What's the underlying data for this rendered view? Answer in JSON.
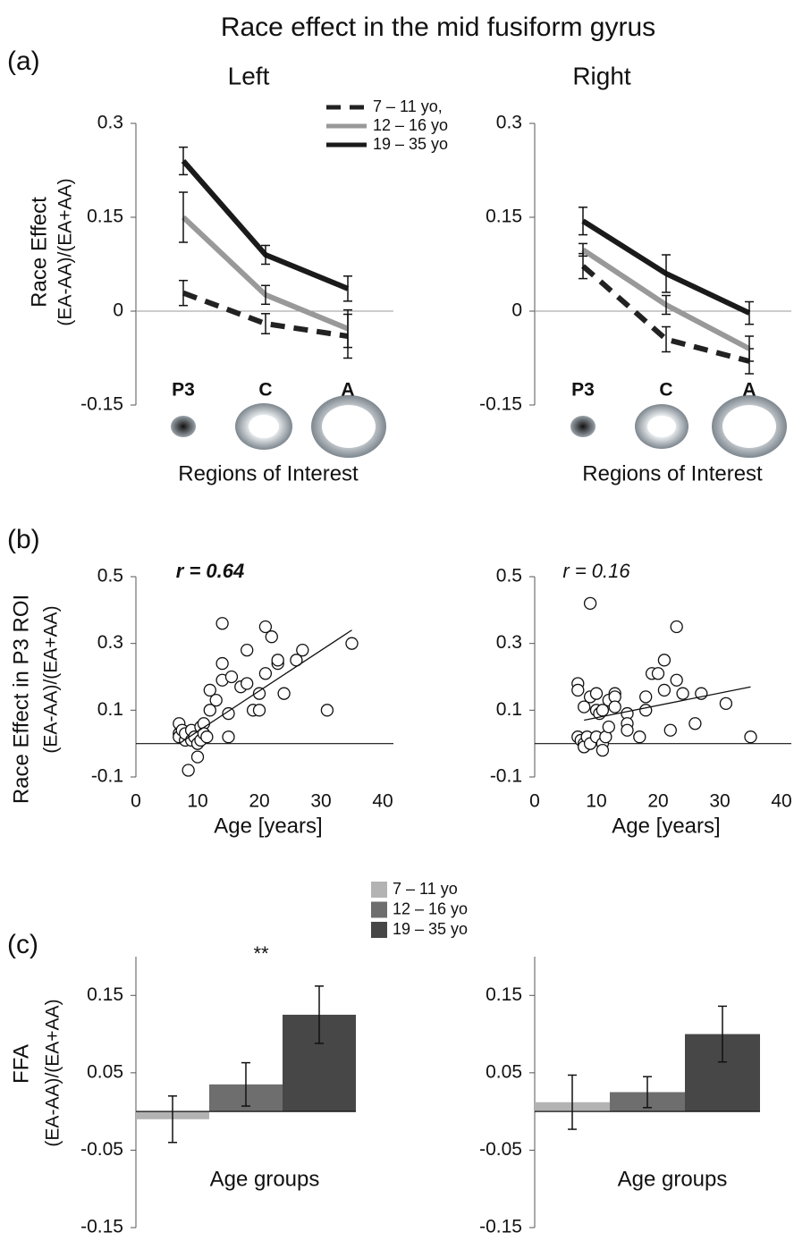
{
  "title": "Race effect in the mid fusiform gyrus",
  "panel_labels": [
    "(a)",
    "(b)",
    "(c)"
  ],
  "chart_data": [
    {
      "type": "line",
      "title": "Left",
      "ylabel": [
        "Race Effect",
        "(EA-AA)/(EA+AA)"
      ],
      "xlabel": "Regions of Interest",
      "categories": [
        "P3",
        "C",
        "A"
      ],
      "ylim": [
        -0.15,
        0.3
      ],
      "yticks": [
        -0.15,
        0,
        0.15,
        0.3
      ],
      "grid": false,
      "legend": true,
      "series": [
        {
          "name": "7 – 11 yo,",
          "color": "#222222",
          "linestyle": "dashed",
          "values": [
            0.029,
            -0.02,
            -0.04
          ],
          "errors": [
            0.02,
            0.016,
            0.035
          ]
        },
        {
          "name": "12 – 16 yo",
          "color": "#999999",
          "linestyle": "solid",
          "values": [
            0.15,
            0.026,
            -0.028
          ],
          "errors": [
            0.04,
            0.015,
            0.03
          ]
        },
        {
          "name": "19 – 35 yo",
          "color": "#1a1a1a",
          "linestyle": "solid",
          "values": [
            0.24,
            0.09,
            0.036
          ],
          "errors": [
            0.022,
            0.015,
            0.02
          ]
        }
      ]
    },
    {
      "type": "line",
      "title": "Right",
      "xlabel": "Regions of Interest",
      "categories": [
        "P3",
        "C",
        "A"
      ],
      "ylim": [
        -0.15,
        0.3
      ],
      "yticks": [
        -0.15,
        0,
        0.15,
        0.3
      ],
      "grid": false,
      "legend": false,
      "series": [
        {
          "color": "#222222",
          "linestyle": "dashed",
          "values": [
            0.072,
            -0.045,
            -0.08
          ],
          "errors": [
            0.02,
            0.02,
            0.02
          ]
        },
        {
          "color": "#999999",
          "linestyle": "solid",
          "values": [
            0.098,
            0.01,
            -0.06
          ],
          "errors": [
            0.01,
            0.015,
            0.02
          ]
        },
        {
          "color": "#1a1a1a",
          "linestyle": "solid",
          "values": [
            0.144,
            0.06,
            -0.003
          ],
          "errors": [
            0.022,
            0.03,
            0.018
          ]
        }
      ]
    },
    {
      "type": "scatter",
      "ylabel": [
        "Race Effect in P3 ROI",
        "(EA-AA)/(EA+AA)"
      ],
      "xlabel": "Age [years]",
      "annotation": "r = 0.64",
      "annotation_bold": true,
      "xlim": [
        0,
        40
      ],
      "xticks": [
        0,
        10,
        20,
        30,
        40
      ],
      "ylim": [
        -0.1,
        0.5
      ],
      "yticks": [
        -0.1,
        0.1,
        0.3,
        0.5
      ],
      "grid": false,
      "x": [
        7,
        7,
        7,
        7.5,
        8,
        8,
        8.5,
        9,
        9,
        9.5,
        10,
        10,
        10.5,
        10.5,
        11,
        11,
        11.5,
        12,
        12,
        13,
        14,
        14,
        14,
        15,
        15,
        15.5,
        17,
        18,
        18,
        19,
        20,
        20,
        21,
        21,
        22,
        23,
        23,
        24,
        26,
        27,
        31,
        35
      ],
      "values": [
        0.06,
        0.03,
        0.02,
        0.04,
        0.01,
        0.03,
        -0.08,
        0.01,
        0.04,
        0.02,
        0.0,
        -0.04,
        0.01,
        0.05,
        0.06,
        0.03,
        0.02,
        0.16,
        0.1,
        0.13,
        0.36,
        0.24,
        0.19,
        0.09,
        0.02,
        0.2,
        0.17,
        0.28,
        0.18,
        0.1,
        0.1,
        0.15,
        0.35,
        0.21,
        0.32,
        0.24,
        0.25,
        0.15,
        0.25,
        0.28,
        0.1,
        0.3
      ],
      "fit": {
        "x": [
          7,
          35
        ],
        "values": [
          0.0,
          0.34
        ]
      }
    },
    {
      "type": "scatter",
      "xlabel": "Age [years]",
      "annotation": "r = 0.16",
      "annotation_bold": false,
      "xlim": [
        0,
        40
      ],
      "xticks": [
        0,
        10,
        20,
        30,
        40
      ],
      "ylim": [
        -0.1,
        0.5
      ],
      "yticks": [
        -0.1,
        0.1,
        0.3,
        0.5
      ],
      "grid": false,
      "x": [
        7,
        7,
        7,
        7.5,
        8,
        8,
        8,
        8.5,
        9,
        9,
        9,
        10,
        10,
        10,
        10.5,
        11,
        11,
        11,
        11.5,
        12,
        12,
        13,
        13,
        13,
        15,
        15,
        15,
        17,
        18,
        18,
        19,
        20,
        21,
        21,
        22,
        23,
        23,
        24,
        26,
        27,
        31,
        35
      ],
      "values": [
        0.18,
        0.16,
        0.02,
        0.01,
        0.11,
        0.0,
        -0.01,
        0.02,
        0.42,
        0.14,
        0.0,
        0.15,
        0.1,
        0.02,
        0.09,
        0.1,
        0.0,
        -0.02,
        0.02,
        0.13,
        0.05,
        0.15,
        0.14,
        0.11,
        0.09,
        0.06,
        0.04,
        0.02,
        0.1,
        0.14,
        0.21,
        0.21,
        0.25,
        0.16,
        0.04,
        0.35,
        0.19,
        0.15,
        0.06,
        0.15,
        0.12,
        0.02
      ],
      "fit": {
        "x": [
          8,
          35
        ],
        "values": [
          0.07,
          0.17
        ]
      }
    },
    {
      "type": "bar",
      "ylabel": [
        "FFA",
        "(EA-AA)/(EA+AA)"
      ],
      "xlabel": "Age groups",
      "annotation": "**",
      "annotation_bold": false,
      "ylim": [
        -0.15,
        0.2
      ],
      "yticks": [
        -0.15,
        -0.05,
        0.05,
        0.15
      ],
      "grid": false,
      "legend": true,
      "series": [
        {
          "name": "7 – 11 yo",
          "color": "#b3b3b3",
          "values": [
            -0.01
          ],
          "errors": [
            0.03
          ]
        },
        {
          "name": "12 – 16 yo",
          "color": "#6e6e6e",
          "values": [
            0.035
          ],
          "errors": [
            0.028
          ]
        },
        {
          "name": "19 – 35 yo",
          "color": "#474747",
          "values": [
            0.125
          ],
          "errors": [
            0.037
          ]
        }
      ]
    },
    {
      "type": "bar",
      "xlabel": "Age groups",
      "ylim": [
        -0.15,
        0.2
      ],
      "yticks": [
        -0.15,
        -0.05,
        0.05,
        0.15
      ],
      "grid": false,
      "legend": false,
      "series": [
        {
          "color": "#b3b3b3",
          "values": [
            0.012
          ],
          "errors": [
            0.035
          ]
        },
        {
          "color": "#6e6e6e",
          "values": [
            0.025
          ],
          "errors": [
            0.02
          ]
        },
        {
          "color": "#474747",
          "values": [
            0.1
          ],
          "errors": [
            0.036
          ]
        }
      ]
    }
  ]
}
